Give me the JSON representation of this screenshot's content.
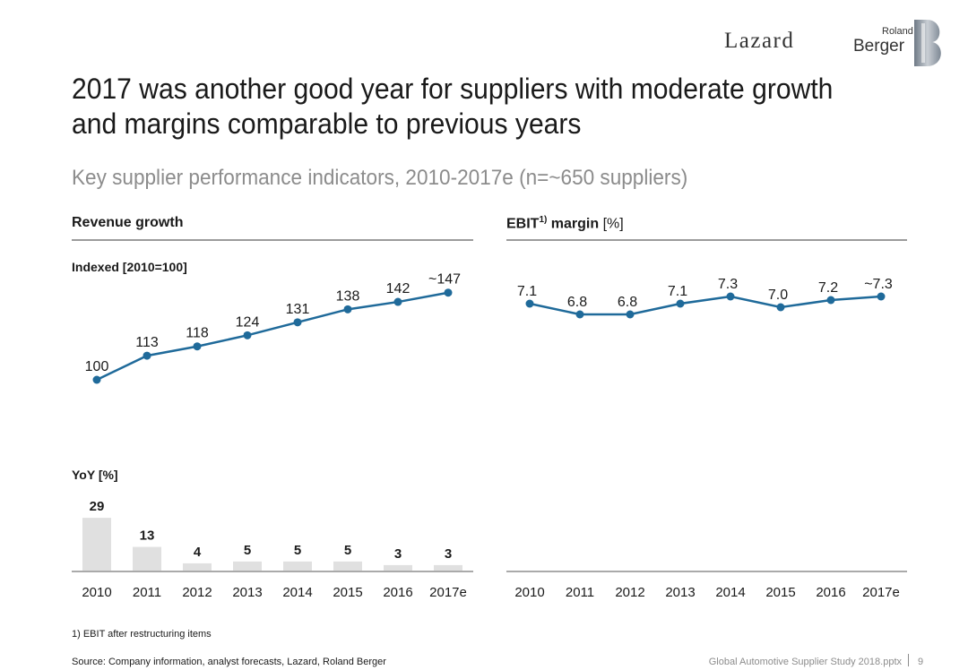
{
  "header": {
    "logo_left": "Lazard",
    "logo_right_top": "Roland",
    "logo_right_bottom": "Berger"
  },
  "title": "2017 was another good year for suppliers with moderate growth and margins comparable to previous years",
  "subtitle": "Key supplier performance indicators, 2010-2017e (n=~650 suppliers)",
  "left_panel": {
    "label": "Revenue growth",
    "index_label": "Indexed [2010=100]",
    "yoy_label": "YoY [%]"
  },
  "right_panel": {
    "label_main": "EBIT",
    "label_sup": "1)",
    "label_rest": " margin",
    "label_unit": " [%]"
  },
  "chart_data": [
    {
      "type": "line",
      "title": "Revenue growth – Indexed [2010=100]",
      "categories": [
        "2010",
        "2011",
        "2012",
        "2013",
        "2014",
        "2015",
        "2016",
        "2017e"
      ],
      "values": [
        100,
        113,
        118,
        124,
        131,
        138,
        142,
        147
      ],
      "labels": [
        "100",
        "113",
        "118",
        "124",
        "131",
        "138",
        "142",
        "~147"
      ],
      "color": "#1f6a9a"
    },
    {
      "type": "bar",
      "title": "YoY [%]",
      "categories": [
        "2010",
        "2011",
        "2012",
        "2013",
        "2014",
        "2015",
        "2016",
        "2017e"
      ],
      "values": [
        29,
        13,
        4,
        5,
        5,
        5,
        3,
        3
      ],
      "labels": [
        "29",
        "13",
        "4",
        "5",
        "5",
        "5",
        "3",
        "3"
      ],
      "color": "#e0e0e0"
    },
    {
      "type": "line",
      "title": "EBIT margin [%]",
      "categories": [
        "2010",
        "2011",
        "2012",
        "2013",
        "2014",
        "2015",
        "2016",
        "2017e"
      ],
      "values": [
        7.1,
        6.8,
        6.8,
        7.1,
        7.3,
        7.0,
        7.2,
        7.3
      ],
      "labels": [
        "7.1",
        "6.8",
        "6.8",
        "7.1",
        "7.3",
        "7.0",
        "7.2",
        "~7.3"
      ],
      "color": "#1f6a9a"
    }
  ],
  "footnote": "1) EBIT after restructuring items",
  "source": "Source: Company information, analyst forecasts, Lazard, Roland Berger",
  "doc_name": "Global Automotive Supplier Study 2018.pptx",
  "page_number": "9"
}
